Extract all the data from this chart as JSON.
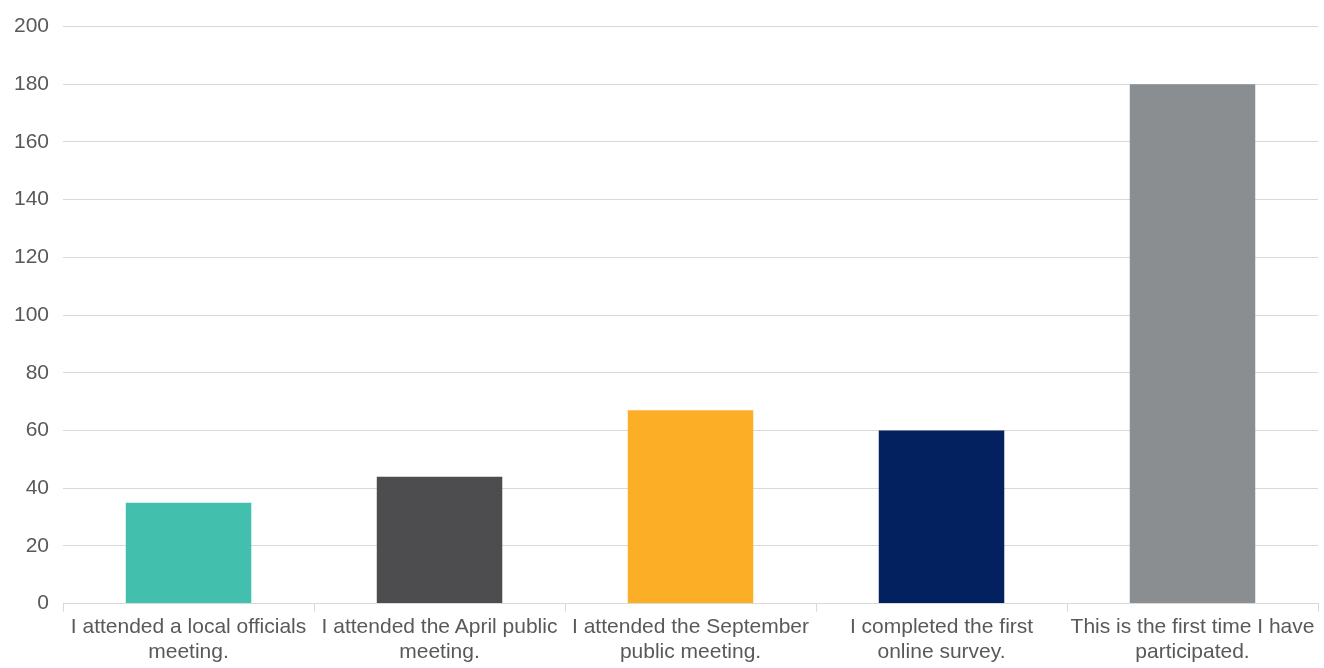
{
  "chart_data": {
    "type": "bar",
    "categories": [
      "I attended a local officials meeting.",
      "I attended the April public meeting.",
      "I attended the September public meeting.",
      "I completed the first online survey.",
      "This is the first time I have participated."
    ],
    "values": [
      35,
      44,
      67,
      60,
      180
    ],
    "colors": [
      "#43bfad",
      "#4d4d4f",
      "#fbae26",
      "#02215e",
      "#8a8e90"
    ],
    "ylim": [
      0,
      200
    ],
    "yticks": [
      0,
      20,
      40,
      60,
      80,
      100,
      120,
      140,
      160,
      180,
      200
    ],
    "grid": "y",
    "legend": false
  }
}
